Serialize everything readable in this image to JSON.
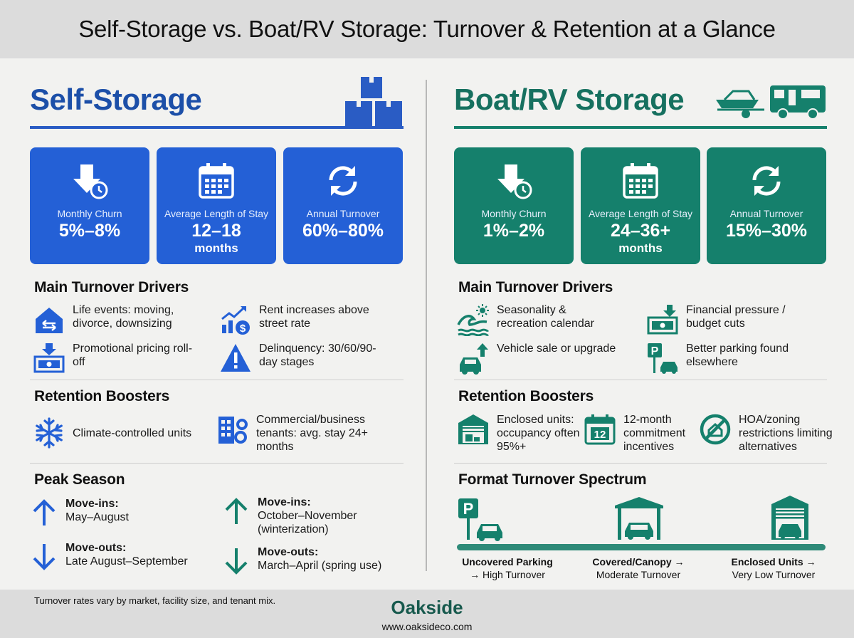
{
  "title": "Self-Storage vs. Boat/RV Storage: Turnover & Retention at a Glance",
  "colors": {
    "self_blue": "#2460d6",
    "rv_teal": "#15806c",
    "brand": "#17594d"
  },
  "self": {
    "heading": "Self-Storage",
    "stats": [
      {
        "icon": "down-arrow-clock-icon",
        "label": "Monthly Churn",
        "value": "5%–8%",
        "unit": ""
      },
      {
        "icon": "calendar-icon",
        "label": "Average Length of Stay",
        "value": "12–18",
        "unit": "months"
      },
      {
        "icon": "refresh-cycle-icon",
        "label": "Annual Turnover",
        "value": "60%–80%",
        "unit": ""
      }
    ],
    "drivers_heading": "Main Turnover Drivers",
    "drivers": [
      {
        "icon": "house-moving-icon",
        "text": "Life events: moving, divorce, downsizing"
      },
      {
        "icon": "rent-increase-chart-icon",
        "text": "Rent increases above street rate"
      },
      {
        "icon": "promo-cash-icon",
        "text": "Promotional pricing roll-off"
      },
      {
        "icon": "warning-triangle-icon",
        "text": "Delinquency: 30/60/90-day stages"
      }
    ],
    "boosters_heading": "Retention Boosters",
    "boosters": [
      {
        "icon": "snowflake-icon",
        "text": "Climate-controlled units"
      },
      {
        "icon": "office-building-gear-icon",
        "text": "Commercial/business tenants: avg. stay 24+ months"
      }
    ],
    "peak_heading": "Peak Season",
    "peak": [
      {
        "icon": "arrow-up-icon",
        "title": "Move-ins:",
        "text": "May–August"
      },
      {
        "icon": "arrow-up-icon",
        "title": "Move-ins:",
        "text": "October–November (winterization)"
      },
      {
        "icon": "arrow-down-icon",
        "title": "Move-outs:",
        "text": "Late August–September"
      },
      {
        "icon": "arrow-down-icon",
        "title": "Move-outs:",
        "text": "March–April (spring use)"
      }
    ]
  },
  "rv": {
    "heading": "Boat/RV Storage",
    "stats": [
      {
        "icon": "down-arrow-clock-icon",
        "label": "Monthly Churn",
        "value": "1%–2%",
        "unit": ""
      },
      {
        "icon": "calendar-icon",
        "label": "Average Length of Stay",
        "value": "24–36+",
        "unit": "months"
      },
      {
        "icon": "refresh-cycle-icon",
        "label": "Annual Turnover",
        "value": "15%–30%",
        "unit": ""
      }
    ],
    "drivers_heading": "Main Turnover Drivers",
    "drivers": [
      {
        "icon": "wave-sun-icon",
        "text": "Seasonality & recreation calendar"
      },
      {
        "icon": "cash-down-icon",
        "text": "Financial pressure / budget cuts"
      },
      {
        "icon": "car-arrow-up-icon",
        "text": "Vehicle sale or upgrade"
      },
      {
        "icon": "parking-car-icon",
        "text": "Better parking found elsewhere"
      }
    ],
    "boosters_heading": "Retention Boosters",
    "boosters": [
      {
        "icon": "garage-icon",
        "text": "Enclosed units: occupancy often 95%+"
      },
      {
        "icon": "calendar-12-icon",
        "text": "12-month commitment incentives"
      },
      {
        "icon": "no-zoning-icon",
        "text": "HOA/zoning restrictions limiting alternatives"
      }
    ],
    "spectrum_heading": "Format Turnover Spectrum",
    "spectrum": [
      {
        "icon": "parking-car-icon",
        "a": "Uncovered Parking",
        "b": "→ High Turnover"
      },
      {
        "icon": "canopy-car-icon",
        "a": "Covered/Canopy →",
        "b": "Moderate Turnover"
      },
      {
        "icon": "enclosed-garage-icon",
        "a": "Enclosed Units →",
        "b": "Very Low Turnover"
      }
    ]
  },
  "footer": {
    "note": "Turnover rates vary by market, facility size, and tenant mix.",
    "brand": "Oakside",
    "url": "www.oaksideco.com"
  }
}
